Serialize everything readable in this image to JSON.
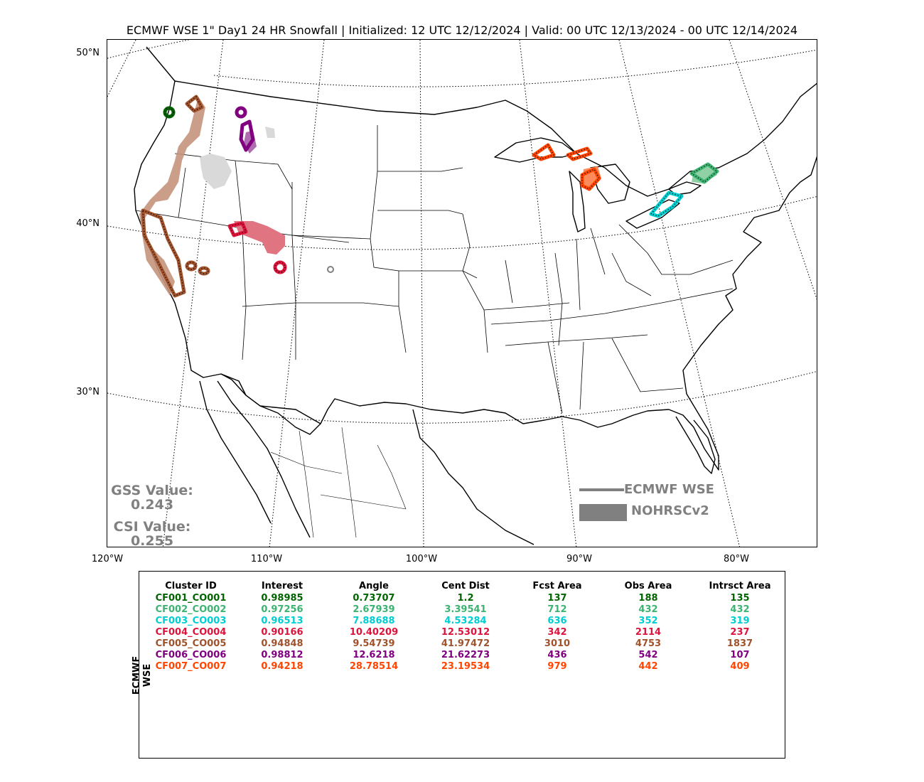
{
  "title": "ECMWF WSE 1\" Day1 24 HR Snowfall | Initialized: 12 UTC 12/12/2024 | Valid: 00 UTC 12/13/2024 - 00 UTC 12/14/2024",
  "map": {
    "lat_labels": [
      "50°N",
      "40°N",
      "30°N"
    ],
    "lon_labels": [
      "120°W",
      "110°W",
      "100°W",
      "90°W",
      "80°W"
    ]
  },
  "scores": {
    "gss_label": "GSS Value:",
    "gss_value": "0.243",
    "csi_label": "CSI Value:",
    "csi_value": "0.255"
  },
  "legend": {
    "forecast_label": "ECMWF WSE",
    "observed_label": "NOHRSCv2"
  },
  "table": {
    "side_label": "ECMWF WSE",
    "headers": [
      "Cluster ID",
      "Interest",
      "Angle",
      "Cent Dist",
      "Fcst Area",
      "Obs Area",
      "Intrsct Area"
    ],
    "rows": [
      {
        "color": "#006400",
        "cells": [
          "CF001_CO001",
          "0.98985",
          "0.73707",
          "1.2",
          "137",
          "188",
          "135"
        ]
      },
      {
        "color": "#3cb371",
        "cells": [
          "CF002_CO002",
          "0.97256",
          "2.67939",
          "3.39541",
          "712",
          "432",
          "432"
        ]
      },
      {
        "color": "#00ced1",
        "cells": [
          "CF003_CO003",
          "0.96513",
          "7.88688",
          "4.53284",
          "636",
          "352",
          "319"
        ]
      },
      {
        "color": "#dc143c",
        "cells": [
          "CF004_CO004",
          "0.90166",
          "10.40209",
          "12.53012",
          "342",
          "2114",
          "237"
        ]
      },
      {
        "color": "#a0522d",
        "cells": [
          "CF005_CO005",
          "0.94848",
          "9.54739",
          "41.97472",
          "3010",
          "4753",
          "1837"
        ]
      },
      {
        "color": "#800080",
        "cells": [
          "CF006_CO006",
          "0.98812",
          "12.6218",
          "21.62273",
          "436",
          "542",
          "107"
        ]
      },
      {
        "color": "#ff4500",
        "cells": [
          "CF007_CO007",
          "0.94218",
          "28.78514",
          "23.19534",
          "979",
          "442",
          "409"
        ]
      }
    ]
  },
  "clusters": {
    "colors": {
      "cf001": "#006400",
      "cf002": "#3cb371",
      "cf003": "#00ced1",
      "cf004": "#dc143c",
      "cf005": "#a0522d",
      "cf006": "#800080",
      "cf007": "#ff4500",
      "unmatched_obs": "#d3d3d3",
      "unmatched_fcst": "#808080"
    }
  }
}
